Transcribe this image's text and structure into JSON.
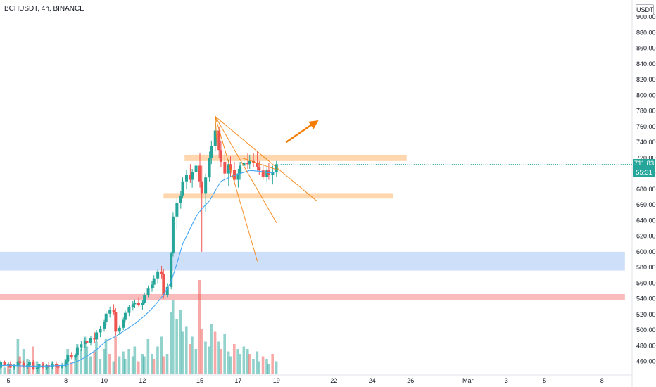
{
  "header": {
    "symbol": "BCHUSDT, 4h, BINANCE",
    "currency": "USDT"
  },
  "colors": {
    "up": "#26a69a",
    "down": "#ef5350",
    "ma": "#42a5f5",
    "orange": "#f57c00",
    "zone_orange": "#ffcc99",
    "zone_blue": "#c9dcf8",
    "zone_red": "#f8b4b4"
  },
  "chart_data": {
    "type": "candlestick",
    "title": "",
    "xlabel": "",
    "ylabel": "",
    "ylim": [
      450,
      910
    ],
    "y_ticks": [
      "900.00",
      "880.00",
      "860.00",
      "840.00",
      "820.00",
      "800.00",
      "780.00",
      "760.00",
      "740.00",
      "720.00",
      "700.00",
      "680.00",
      "660.00",
      "640.00",
      "620.00",
      "600.00",
      "580.00",
      "560.00",
      "540.00",
      "520.00",
      "500.00",
      "480.00",
      "460.00"
    ],
    "x_ticks": [
      {
        "t": 5,
        "label": "5"
      },
      {
        "t": 8,
        "label": "8"
      },
      {
        "t": 10,
        "label": "10"
      },
      {
        "t": 12,
        "label": "12"
      },
      {
        "t": 15,
        "label": "15"
      },
      {
        "t": 17,
        "label": "17"
      },
      {
        "t": 19,
        "label": "19"
      },
      {
        "t": 22,
        "label": "22"
      },
      {
        "t": 24,
        "label": "24"
      },
      {
        "t": 26,
        "label": "26"
      },
      {
        "t": 29,
        "label": "Mar"
      },
      {
        "t": 31,
        "label": "3"
      },
      {
        "t": 33,
        "label": "5"
      },
      {
        "t": 36,
        "label": "8"
      }
    ],
    "last_price": "711.83",
    "countdown": "55:31",
    "candles": [
      [
        4.1,
        455,
        458,
        452,
        456
      ],
      [
        4.3,
        456,
        458,
        451,
        453
      ],
      [
        4.5,
        453,
        456,
        449,
        452
      ],
      [
        4.6,
        452,
        461,
        450,
        459
      ],
      [
        4.8,
        459,
        461,
        454,
        455
      ],
      [
        5.0,
        455,
        459,
        452,
        457
      ],
      [
        5.1,
        457,
        460,
        451,
        452
      ],
      [
        5.3,
        452,
        456,
        449,
        454
      ],
      [
        5.5,
        454,
        462,
        452,
        460
      ],
      [
        5.6,
        460,
        465,
        455,
        458
      ],
      [
        5.8,
        458,
        461,
        452,
        453
      ],
      [
        6.0,
        453,
        457,
        450,
        455
      ],
      [
        6.1,
        455,
        462,
        453,
        459
      ],
      [
        6.3,
        459,
        462,
        449,
        450
      ],
      [
        6.5,
        450,
        454,
        446,
        452
      ],
      [
        6.6,
        452,
        458,
        450,
        456
      ],
      [
        6.8,
        456,
        459,
        451,
        452
      ],
      [
        7.0,
        452,
        456,
        449,
        455
      ],
      [
        7.1,
        455,
        459,
        451,
        453
      ],
      [
        7.3,
        453,
        460,
        450,
        457
      ],
      [
        7.5,
        457,
        460,
        452,
        454
      ],
      [
        7.6,
        454,
        456,
        449,
        452
      ],
      [
        7.8,
        452,
        458,
        451,
        455
      ],
      [
        8.0,
        455,
        462,
        453,
        460
      ],
      [
        8.1,
        460,
        470,
        458,
        468
      ],
      [
        8.3,
        468,
        472,
        463,
        465
      ],
      [
        8.5,
        465,
        470,
        462,
        468
      ],
      [
        8.6,
        468,
        480,
        466,
        478
      ],
      [
        8.8,
        478,
        486,
        473,
        482
      ],
      [
        9.0,
        482,
        490,
        477,
        486
      ],
      [
        9.1,
        486,
        493,
        480,
        484
      ],
      [
        9.3,
        484,
        492,
        480,
        490
      ],
      [
        9.5,
        490,
        497,
        484,
        488
      ],
      [
        9.6,
        488,
        500,
        485,
        497
      ],
      [
        9.8,
        497,
        505,
        491,
        502
      ],
      [
        10.0,
        502,
        513,
        498,
        510
      ],
      [
        10.1,
        510,
        524,
        506,
        521
      ],
      [
        10.3,
        521,
        530,
        516,
        526
      ],
      [
        10.5,
        526,
        533,
        520,
        523
      ],
      [
        10.6,
        523,
        528,
        493,
        498
      ],
      [
        10.8,
        498,
        506,
        494,
        503
      ],
      [
        11.0,
        503,
        516,
        500,
        513
      ],
      [
        11.1,
        513,
        525,
        510,
        522
      ],
      [
        11.3,
        522,
        532,
        518,
        529
      ],
      [
        11.5,
        529,
        537,
        525,
        533
      ],
      [
        11.6,
        533,
        539,
        528,
        535
      ],
      [
        11.8,
        535,
        542,
        530,
        532
      ],
      [
        12.0,
        532,
        538,
        526,
        535
      ],
      [
        12.1,
        535,
        548,
        533,
        545
      ],
      [
        12.3,
        545,
        557,
        542,
        553
      ],
      [
        12.5,
        553,
        563,
        549,
        558
      ],
      [
        12.6,
        558,
        570,
        554,
        566
      ],
      [
        12.8,
        566,
        578,
        560,
        575
      ],
      [
        13.0,
        575,
        582,
        566,
        572
      ],
      [
        13.1,
        572,
        578,
        540,
        545
      ],
      [
        13.3,
        545,
        560,
        542,
        555
      ],
      [
        13.5,
        555,
        600,
        552,
        598
      ],
      [
        13.6,
        598,
        650,
        594,
        645
      ],
      [
        13.8,
        645,
        668,
        628,
        662
      ],
      [
        14.0,
        662,
        678,
        655,
        672
      ],
      [
        14.1,
        672,
        695,
        668,
        690
      ],
      [
        14.3,
        690,
        705,
        680,
        698
      ],
      [
        14.5,
        698,
        712,
        688,
        692
      ],
      [
        14.6,
        692,
        706,
        682,
        702
      ],
      [
        14.8,
        702,
        718,
        694,
        710
      ],
      [
        15.0,
        710,
        726,
        682,
        690
      ],
      [
        15.1,
        690,
        710,
        600,
        675
      ],
      [
        15.3,
        675,
        700,
        650,
        695
      ],
      [
        15.5,
        695,
        728,
        690,
        720
      ],
      [
        15.6,
        720,
        742,
        712,
        735
      ],
      [
        15.8,
        735,
        770,
        728,
        755
      ],
      [
        16.0,
        755,
        760,
        720,
        730
      ],
      [
        16.1,
        730,
        742,
        708,
        715
      ],
      [
        16.3,
        715,
        726,
        690,
        700
      ],
      [
        16.5,
        700,
        718,
        684,
        712
      ],
      [
        16.6,
        712,
        722,
        696,
        705
      ],
      [
        16.8,
        705,
        715,
        686,
        692
      ],
      [
        17.0,
        692,
        706,
        682,
        700
      ],
      [
        17.1,
        700,
        715,
        692,
        710
      ],
      [
        17.3,
        710,
        720,
        700,
        714
      ],
      [
        17.5,
        714,
        726,
        706,
        712
      ],
      [
        17.6,
        712,
        724,
        706,
        716
      ],
      [
        17.8,
        716,
        726,
        708,
        714
      ],
      [
        18.0,
        714,
        728,
        704,
        708
      ],
      [
        18.1,
        708,
        716,
        698,
        704
      ],
      [
        18.3,
        704,
        712,
        692,
        696
      ],
      [
        18.5,
        696,
        708,
        690,
        704
      ],
      [
        18.6,
        704,
        714,
        692,
        698
      ],
      [
        18.8,
        698,
        710,
        686,
        702
      ],
      [
        19.0,
        702,
        716,
        696,
        712
      ]
    ],
    "volume": [
      [
        4.1,
        8,
        "up"
      ],
      [
        4.3,
        6,
        "up"
      ],
      [
        4.5,
        5,
        "down"
      ],
      [
        4.6,
        9,
        "up"
      ],
      [
        4.8,
        5,
        "up"
      ],
      [
        5.0,
        7,
        "down"
      ],
      [
        5.1,
        4,
        "up"
      ],
      [
        5.3,
        8,
        "up"
      ],
      [
        5.5,
        28,
        "up"
      ],
      [
        5.6,
        14,
        "down"
      ],
      [
        5.8,
        20,
        "up"
      ],
      [
        6.0,
        12,
        "up"
      ],
      [
        6.1,
        9,
        "down"
      ],
      [
        6.3,
        22,
        "down"
      ],
      [
        6.5,
        10,
        "up"
      ],
      [
        6.6,
        6,
        "up"
      ],
      [
        6.8,
        9,
        "down"
      ],
      [
        7.0,
        7,
        "up"
      ],
      [
        7.1,
        5,
        "up"
      ],
      [
        7.3,
        10,
        "up"
      ],
      [
        7.5,
        8,
        "down"
      ],
      [
        7.6,
        7,
        "down"
      ],
      [
        7.8,
        6,
        "up"
      ],
      [
        8.0,
        12,
        "up"
      ],
      [
        8.1,
        20,
        "up"
      ],
      [
        8.3,
        9,
        "down"
      ],
      [
        8.5,
        14,
        "up"
      ],
      [
        8.6,
        24,
        "up"
      ],
      [
        8.8,
        20,
        "up"
      ],
      [
        9.0,
        30,
        "up"
      ],
      [
        9.1,
        22,
        "up"
      ],
      [
        9.3,
        14,
        "up"
      ],
      [
        9.5,
        18,
        "down"
      ],
      [
        9.6,
        26,
        "up"
      ],
      [
        9.8,
        12,
        "up"
      ],
      [
        10.0,
        20,
        "up"
      ],
      [
        10.1,
        28,
        "up"
      ],
      [
        10.3,
        16,
        "down"
      ],
      [
        10.5,
        10,
        "up"
      ],
      [
        10.6,
        30,
        "down"
      ],
      [
        10.8,
        14,
        "up"
      ],
      [
        11.0,
        18,
        "up"
      ],
      [
        11.1,
        12,
        "up"
      ],
      [
        11.3,
        20,
        "up"
      ],
      [
        11.5,
        14,
        "up"
      ],
      [
        11.6,
        22,
        "up"
      ],
      [
        11.8,
        10,
        "down"
      ],
      [
        12.0,
        16,
        "up"
      ],
      [
        12.1,
        14,
        "up"
      ],
      [
        12.3,
        28,
        "up"
      ],
      [
        12.5,
        16,
        "up"
      ],
      [
        12.6,
        12,
        "down"
      ],
      [
        12.8,
        22,
        "up"
      ],
      [
        13.0,
        30,
        "up"
      ],
      [
        13.1,
        14,
        "down"
      ],
      [
        13.3,
        16,
        "up"
      ],
      [
        13.5,
        50,
        "up"
      ],
      [
        13.6,
        60,
        "up"
      ],
      [
        13.8,
        44,
        "up"
      ],
      [
        14.0,
        52,
        "up"
      ],
      [
        14.1,
        34,
        "up"
      ],
      [
        14.3,
        38,
        "up"
      ],
      [
        14.5,
        24,
        "down"
      ],
      [
        14.6,
        30,
        "up"
      ],
      [
        14.8,
        20,
        "up"
      ],
      [
        15.0,
        76,
        "down"
      ],
      [
        15.1,
        36,
        "down"
      ],
      [
        15.3,
        26,
        "up"
      ],
      [
        15.5,
        22,
        "up"
      ],
      [
        15.6,
        40,
        "up"
      ],
      [
        15.8,
        34,
        "down"
      ],
      [
        16.0,
        26,
        "up"
      ],
      [
        16.1,
        20,
        "down"
      ],
      [
        16.3,
        32,
        "up"
      ],
      [
        16.5,
        18,
        "up"
      ],
      [
        16.6,
        14,
        "up"
      ],
      [
        16.8,
        24,
        "down"
      ],
      [
        17.0,
        20,
        "up"
      ],
      [
        17.1,
        16,
        "up"
      ],
      [
        17.3,
        22,
        "up"
      ],
      [
        17.5,
        20,
        "up"
      ],
      [
        17.6,
        16,
        "down"
      ],
      [
        17.8,
        12,
        "up"
      ],
      [
        18.0,
        18,
        "up"
      ],
      [
        18.1,
        10,
        "up"
      ],
      [
        18.3,
        14,
        "down"
      ],
      [
        18.5,
        12,
        "up"
      ],
      [
        18.6,
        8,
        "up"
      ],
      [
        18.8,
        16,
        "down"
      ],
      [
        19.0,
        10,
        "up"
      ]
    ],
    "ma": [
      [
        4.1,
        454
      ],
      [
        5.0,
        455
      ],
      [
        6.0,
        454
      ],
      [
        7.0,
        454
      ],
      [
        8.0,
        455
      ],
      [
        8.6,
        460
      ],
      [
        9.0,
        465
      ],
      [
        9.6,
        475
      ],
      [
        10.1,
        486
      ],
      [
        10.6,
        492
      ],
      [
        11.1,
        500
      ],
      [
        11.6,
        508
      ],
      [
        12.1,
        518
      ],
      [
        12.6,
        530
      ],
      [
        13.1,
        545
      ],
      [
        13.5,
        562
      ],
      [
        13.8,
        585
      ],
      [
        14.1,
        610
      ],
      [
        14.5,
        630
      ],
      [
        14.8,
        645
      ],
      [
        15.1,
        655
      ],
      [
        15.5,
        665
      ],
      [
        15.8,
        678
      ],
      [
        16.1,
        690
      ],
      [
        16.6,
        696
      ],
      [
        17.1,
        700
      ],
      [
        17.6,
        704
      ],
      [
        18.1,
        703
      ],
      [
        18.6,
        701
      ],
      [
        19.0,
        702
      ]
    ],
    "zones": [
      {
        "t0": 14.2,
        "t1": 25.8,
        "p0": 716,
        "p1": 724,
        "color": "orange"
      },
      {
        "t0": 13.1,
        "t1": 25.1,
        "p0": 668,
        "p1": 675,
        "color": "orange"
      },
      {
        "t0": 3.8,
        "t1": 37.2,
        "p0": 576,
        "p1": 600,
        "color": "blue"
      },
      {
        "t0": 3.8,
        "t1": 37.2,
        "p0": 538,
        "p1": 546,
        "color": "red"
      }
    ],
    "trendlines": [
      {
        "t0": 15.8,
        "p0": 773,
        "t1": 21.1,
        "p1": 665
      },
      {
        "t0": 15.8,
        "p0": 773,
        "t1": 19.0,
        "p1": 637
      },
      {
        "t0": 15.8,
        "p0": 773,
        "t1": 18.0,
        "p1": 588
      },
      {
        "t0": 15.8,
        "p0": 773,
        "t1": 15.9,
        "p1": 735
      },
      {
        "t0": 17.2,
        "p0": 720,
        "t1": 19.0,
        "p1": 705
      }
    ],
    "arrow": {
      "t0": 19.5,
      "p0": 740,
      "t1": 21.2,
      "p1": 768
    }
  }
}
